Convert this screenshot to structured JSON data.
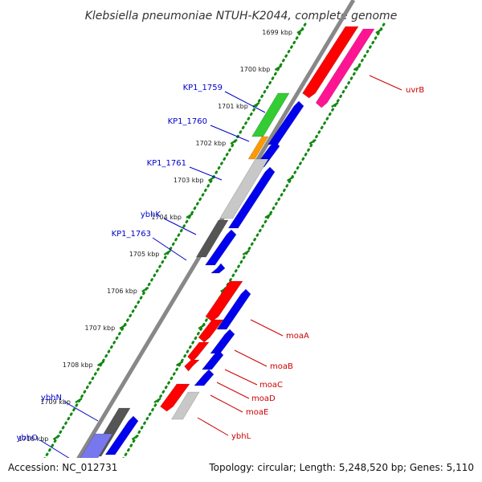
{
  "title": "Klebsiella pneumoniae NTUH-K2044, complete genome",
  "accession": "Accession: NC_012731",
  "summary": "Topology: circular; Length: 5,248,520 bp; Genes: 5,110",
  "ruler_ticks": [
    "1699 kbp",
    "1700 kbp",
    "1701 kbp",
    "1702 kbp",
    "1703 kbp",
    "1704 kbp",
    "1705 kbp",
    "1706 kbp",
    "1707 kbp",
    "1708 kbp",
    "1709 kbp",
    "1710 kbp"
  ],
  "left_labels": [
    "KP1_1759",
    "KP1_1760",
    "KP1_1761",
    "ybhK",
    "KP1_1763",
    "ybhN",
    "ybhO"
  ],
  "right_labels": [
    "uvrB",
    "moaA",
    "moaB",
    "moaC",
    "moaD",
    "moaE",
    "ybhL"
  ],
  "colors": {
    "left_label": "#0000cc",
    "right_label": "#cc0000",
    "red": "#ff0000",
    "magenta": "#ff1493",
    "blue": "#0000ee",
    "green": "#33cc33",
    "orange": "#ff9900",
    "gray_light": "#c8c8c8",
    "gray_dark": "#555555",
    "ruler": "#118811",
    "backbone": "#888888"
  }
}
